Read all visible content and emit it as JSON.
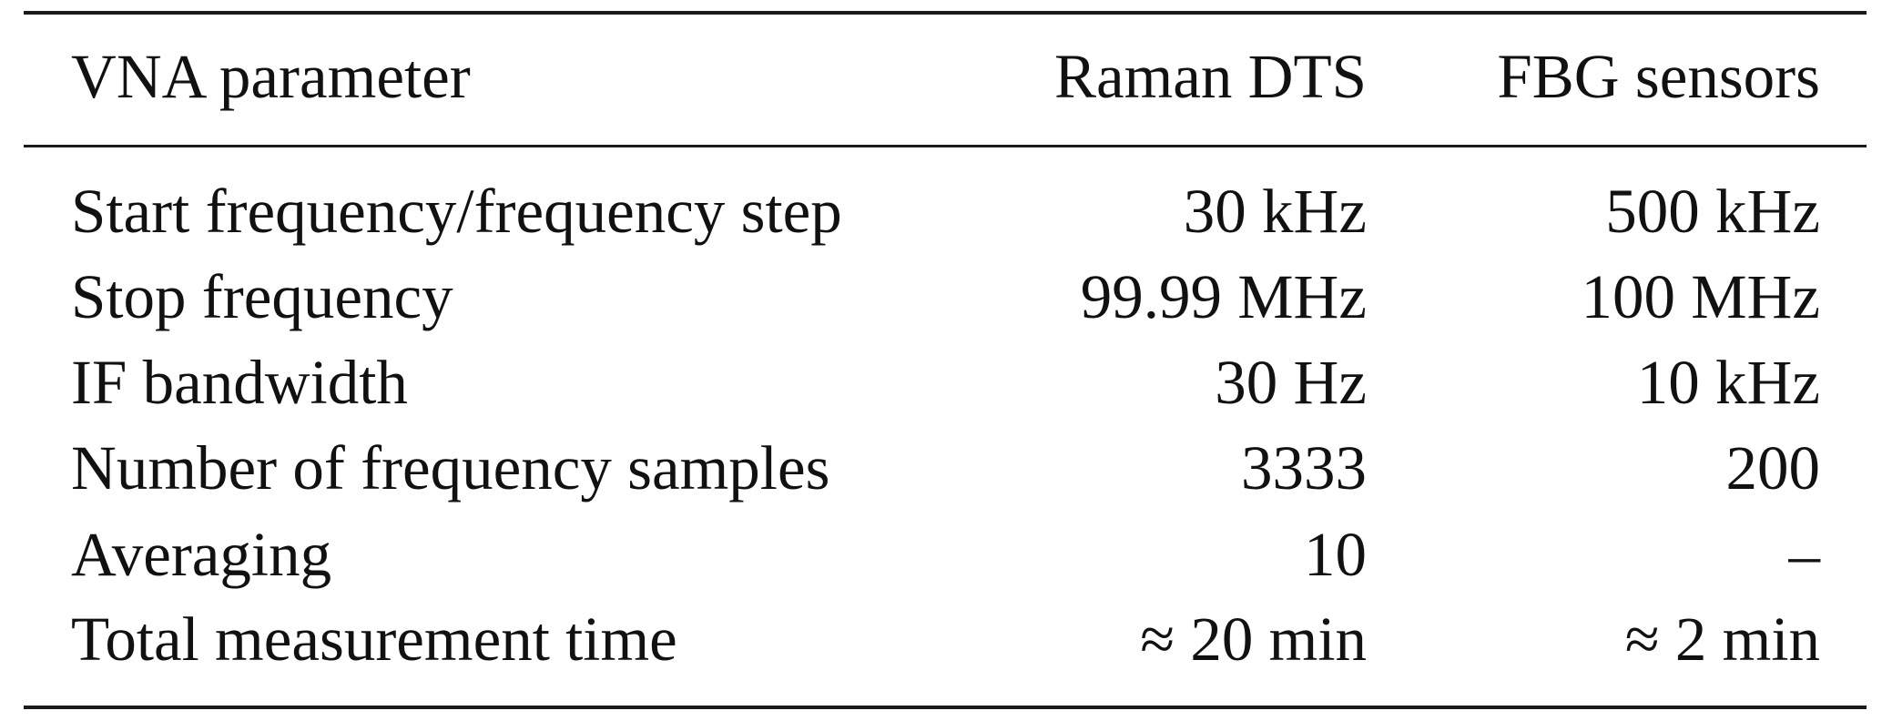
{
  "table": {
    "headers": {
      "parameter": "VNA parameter",
      "raman": "Raman DTS",
      "fbg": "FBG sensors"
    },
    "rows": [
      {
        "parameter": "Start frequency/frequency step",
        "raman": "30 kHz",
        "fbg": "500 kHz"
      },
      {
        "parameter": "Stop frequency",
        "raman": "99.99 MHz",
        "fbg": "100 MHz"
      },
      {
        "parameter": "IF bandwidth",
        "raman": "30 Hz",
        "fbg": "10 kHz"
      },
      {
        "parameter": "Number of frequency samples",
        "raman": "3333",
        "fbg": "200"
      },
      {
        "parameter": "Averaging",
        "raman": "10",
        "fbg": "–"
      },
      {
        "parameter": "Total measurement time",
        "raman": "≈ 20 min",
        "fbg": "≈ 2 min"
      }
    ]
  }
}
